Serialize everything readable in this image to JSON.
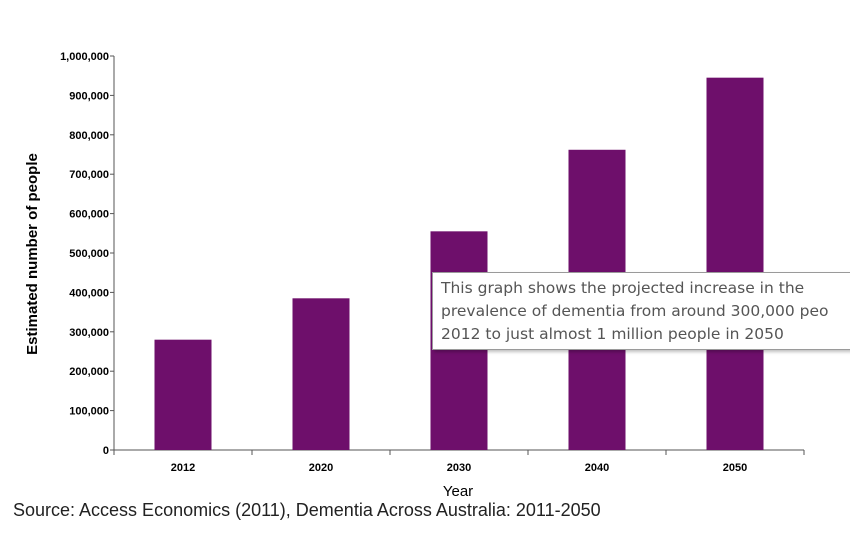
{
  "chart_data": {
    "type": "bar",
    "categories": [
      "2012",
      "2020",
      "2030",
      "2040",
      "2050"
    ],
    "values": [
      280000,
      385000,
      555000,
      762000,
      945000
    ],
    "xlabel": "Year",
    "ylabel": "Estimated number of people",
    "ylim": [
      0,
      1000000
    ],
    "yticks": [
      0,
      100000,
      200000,
      300000,
      400000,
      500000,
      600000,
      700000,
      800000,
      900000,
      1000000
    ],
    "ytick_labels": [
      "0",
      "100,000",
      "200,000",
      "300,000",
      "400,000",
      "500,000",
      "600,000",
      "700,000",
      "800,000",
      "900,000",
      "1,000,000"
    ],
    "grid": false,
    "legend": "none",
    "bar_color": "#6e0f6b"
  },
  "source": "Source: Access Economics (2011), Dementia Across Australia: 2011-2050",
  "tooltip": {
    "lines": [
      "This graph shows the projected increase in the",
      "prevalence of dementia from around 300,000 peo",
      "2012 to just almost 1 million people in 2050"
    ]
  }
}
